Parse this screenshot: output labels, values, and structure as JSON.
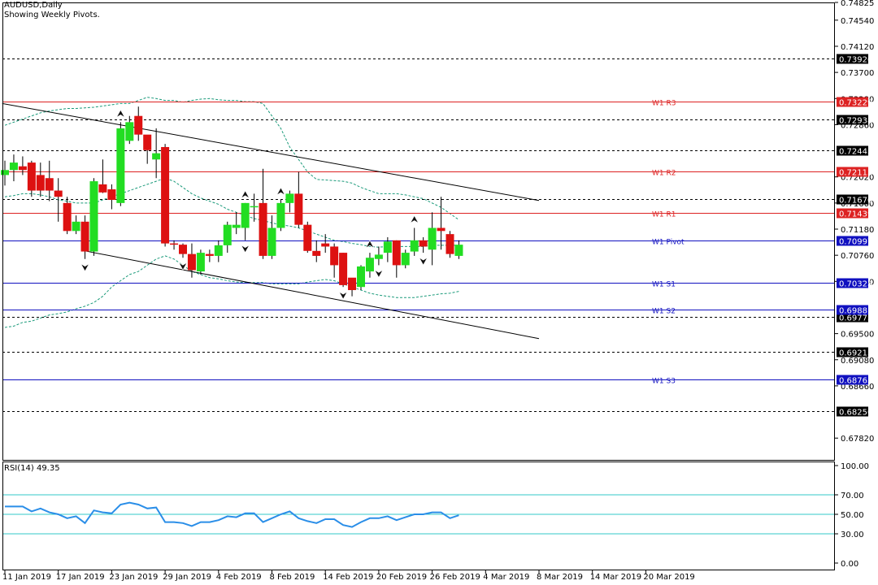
{
  "header": {
    "symbol": "AUDUSD,Daily",
    "subtitle": "Showing Weekly Pivots."
  },
  "rsi_label": "RSI(14) 49.35",
  "colors": {
    "bull": "#22dd22",
    "bear": "#dd1111",
    "pivot_red": "#dd2222",
    "pivot_blue": "#1010c0",
    "rsi": "#2a8ee8",
    "rsi_level": "#33c8c8",
    "band": "#1a9a7a",
    "trendline": "#000000"
  },
  "chart_data": [
    {
      "type": "candlestick",
      "title": "AUDUSD,Daily",
      "subtitle": "Showing Weekly Pivots.",
      "ylim": [
        0.6747,
        0.74825
      ],
      "y_ticks": [
        "0.74825",
        "0.74540",
        "0.74120",
        "0.73700",
        "0.73280",
        "0.72860",
        "0.72020",
        "0.71600",
        "0.71180",
        "0.70760",
        "0.70340",
        "0.69500",
        "0.69080",
        "0.68660",
        "0.67820"
      ],
      "x_labels": [
        "11 Jan 2019",
        "17 Jan 2019",
        "23 Jan 2019",
        "29 Jan 2019",
        "4 Feb 2019",
        "8 Feb 2019",
        "14 Feb 2019",
        "20 Feb 2019",
        "26 Feb 2019",
        "4 Mar 2019",
        "8 Mar 2019",
        "14 Mar 2019",
        "20 Mar 2019"
      ],
      "candles": [
        [
          0.7205,
          0.7228,
          0.7188,
          0.7213
        ],
        [
          0.7213,
          0.7238,
          0.7195,
          0.7225
        ],
        [
          0.7219,
          0.7235,
          0.7205,
          0.7213
        ],
        [
          0.7225,
          0.7228,
          0.717,
          0.718
        ],
        [
          0.7205,
          0.7225,
          0.717,
          0.718
        ],
        [
          0.72,
          0.7228,
          0.7163,
          0.718
        ],
        [
          0.718,
          0.72,
          0.713,
          0.717
        ],
        [
          0.716,
          0.717,
          0.711,
          0.7115
        ],
        [
          0.7115,
          0.714,
          0.711,
          0.713
        ],
        [
          0.713,
          0.714,
          0.707,
          0.7082
        ],
        [
          0.7082,
          0.72,
          0.7075,
          0.7195
        ],
        [
          0.719,
          0.723,
          0.7176,
          0.7177
        ],
        [
          0.7182,
          0.719,
          0.715,
          0.7165
        ],
        [
          0.716,
          0.729,
          0.7155,
          0.728
        ],
        [
          0.726,
          0.73,
          0.7255,
          0.729
        ],
        [
          0.73,
          0.7315,
          0.726,
          0.727
        ],
        [
          0.727,
          0.7268,
          0.7223,
          0.7245
        ],
        [
          0.723,
          0.728,
          0.72,
          0.724
        ],
        [
          0.725,
          0.7255,
          0.709,
          0.7095
        ],
        [
          0.7095,
          0.71,
          0.7085,
          0.7093
        ],
        [
          0.7093,
          0.7095,
          0.7072,
          0.7078
        ],
        [
          0.7078,
          0.7095,
          0.704,
          0.7052
        ],
        [
          0.705,
          0.7085,
          0.7045,
          0.708
        ],
        [
          0.7078,
          0.7085,
          0.7065,
          0.7075
        ],
        [
          0.7075,
          0.71,
          0.7065,
          0.7092
        ],
        [
          0.7092,
          0.713,
          0.708,
          0.7125
        ],
        [
          0.712,
          0.7145,
          0.711,
          0.7125
        ],
        [
          0.712,
          0.716,
          0.71,
          0.716
        ],
        [
          0.7155,
          0.7175,
          0.713,
          0.7155
        ],
        [
          0.716,
          0.7215,
          0.707,
          0.7075
        ],
        [
          0.7075,
          0.714,
          0.707,
          0.712
        ],
        [
          0.712,
          0.7165,
          0.7115,
          0.716
        ],
        [
          0.716,
          0.718,
          0.7145,
          0.7175
        ],
        [
          0.7175,
          0.721,
          0.712,
          0.7125
        ],
        [
          0.7125,
          0.713,
          0.708,
          0.7083
        ],
        [
          0.7083,
          0.71,
          0.7065,
          0.7075
        ],
        [
          0.7095,
          0.711,
          0.708,
          0.709
        ],
        [
          0.709,
          0.7095,
          0.704,
          0.706
        ],
        [
          0.708,
          0.708,
          0.7025,
          0.7028
        ],
        [
          0.704,
          0.7035,
          0.701,
          0.702
        ],
        [
          0.7025,
          0.706,
          0.702,
          0.7058
        ],
        [
          0.705,
          0.708,
          0.704,
          0.7072
        ],
        [
          0.707,
          0.709,
          0.706,
          0.7077
        ],
        [
          0.708,
          0.7105,
          0.7065,
          0.7098
        ],
        [
          0.71,
          0.71,
          0.704,
          0.706
        ],
        [
          0.706,
          0.7085,
          0.7055,
          0.708
        ],
        [
          0.7082,
          0.712,
          0.7075,
          0.71
        ],
        [
          0.71,
          0.7105,
          0.708,
          0.709
        ],
        [
          0.7085,
          0.7145,
          0.706,
          0.712
        ],
        [
          0.712,
          0.717,
          0.7085,
          0.7115
        ],
        [
          0.711,
          0.7115,
          0.7072,
          0.7078
        ],
        [
          0.7075,
          0.71,
          0.707,
          0.7093
        ]
      ],
      "band_upper": [
        0.7285,
        0.729,
        0.7295,
        0.73,
        0.7305,
        0.7308,
        0.731,
        0.7312,
        0.7312,
        0.7313,
        0.7314,
        0.7316,
        0.7318,
        0.732,
        0.732,
        0.7325,
        0.733,
        0.7328,
        0.7325,
        0.7325,
        0.7322,
        0.7325,
        0.7327,
        0.7328,
        0.7326,
        0.7325,
        0.7325,
        0.7323,
        0.7323,
        0.732,
        0.73,
        0.728,
        0.725,
        0.723,
        0.721,
        0.7198,
        0.7197,
        0.7196,
        0.7195,
        0.7192,
        0.7185,
        0.718,
        0.7175,
        0.7175,
        0.7175,
        0.7173,
        0.717,
        0.7167,
        0.716,
        0.7153,
        0.7143,
        0.7133
      ],
      "band_middle": [
        0.717,
        0.7172,
        0.7175,
        0.7175,
        0.7173,
        0.717,
        0.7165,
        0.7163,
        0.716,
        0.716,
        0.716,
        0.7165,
        0.717,
        0.7175,
        0.718,
        0.7185,
        0.719,
        0.7195,
        0.72,
        0.7195,
        0.7185,
        0.7175,
        0.7168,
        0.7163,
        0.7158,
        0.715,
        0.7145,
        0.714,
        0.7135,
        0.7132,
        0.7128,
        0.7125,
        0.7123,
        0.712,
        0.7115,
        0.711,
        0.7105,
        0.71,
        0.7098,
        0.7095,
        0.7093,
        0.709,
        0.7089,
        0.709,
        0.709,
        0.709,
        0.709,
        0.709,
        0.7092,
        0.7092,
        0.7092,
        0.7092
      ],
      "band_lower": [
        0.696,
        0.6962,
        0.6968,
        0.697,
        0.6975,
        0.698,
        0.6982,
        0.6985,
        0.699,
        0.6994,
        0.7,
        0.701,
        0.7025,
        0.7035,
        0.7045,
        0.705,
        0.706,
        0.707,
        0.7075,
        0.707,
        0.706,
        0.705,
        0.7045,
        0.704,
        0.7038,
        0.7035,
        0.7033,
        0.7032,
        0.7032,
        0.7032,
        0.703,
        0.703,
        0.703,
        0.703,
        0.7033,
        0.7035,
        0.7037,
        0.7035,
        0.703,
        0.7025,
        0.702,
        0.7015,
        0.7012,
        0.701,
        0.7008,
        0.7008,
        0.7008,
        0.701,
        0.7012,
        0.7014,
        0.7015,
        0.7018
      ],
      "fractals_up": [
        13,
        27,
        31,
        41,
        46
      ],
      "fractals_down": [
        9,
        20,
        27,
        38,
        42,
        47
      ],
      "pivot_levels": [
        {
          "label": "W1 R3",
          "value": 0.73229,
          "price": "0.73229",
          "color": "red"
        },
        {
          "label": "W1 R2",
          "value": 0.72113,
          "price": "0.72113",
          "color": "red"
        },
        {
          "label": "W1 R1",
          "value": 0.71439,
          "price": "0.71439",
          "color": "red"
        },
        {
          "label": "W1 Pivot",
          "value": 0.70997,
          "price": "0.70997",
          "color": "blue"
        },
        {
          "label": "W1 S1",
          "value": 0.70323,
          "price": "0.70323",
          "color": "blue"
        },
        {
          "label": "W1 S2",
          "value": 0.69881,
          "price": "0.69881",
          "color": "blue"
        },
        {
          "label": "W1 S3",
          "value": 0.68765,
          "price": "0.68765",
          "color": "blue"
        }
      ],
      "dashed_levels": [
        {
          "value": 0.7392,
          "price": "0.73920"
        },
        {
          "value": 0.72938,
          "price": "0.72938"
        },
        {
          "value": 0.72443,
          "price": "0.72443"
        },
        {
          "value": 0.7167,
          "price": "0.71670"
        },
        {
          "value": 0.69775,
          "price": "0.69775"
        },
        {
          "value": 0.69213,
          "price": "0.69213"
        },
        {
          "value": 0.6825,
          "price": "0.68250"
        }
      ],
      "channel_upper": [
        [
          -0.3,
          0.732
        ],
        [
          60.0,
          0.7164
        ]
      ],
      "channel_lower": [
        [
          9.0,
          0.7083
        ],
        [
          60.0,
          0.6942
        ]
      ]
    },
    {
      "type": "line",
      "title": "RSI(14) 49.35",
      "ylim": [
        0,
        100
      ],
      "y_ticks": [
        "100.00",
        "70.00",
        "50.00",
        "30.00",
        "0.00"
      ],
      "levels": [
        70,
        50,
        30
      ],
      "values": [
        58,
        58,
        58,
        53,
        56,
        52,
        50,
        46,
        48,
        41,
        54,
        52,
        51,
        60,
        62,
        60,
        56,
        57,
        42,
        42,
        41,
        38,
        42,
        42,
        44,
        48,
        47,
        51,
        51,
        42,
        46,
        50,
        53,
        46,
        43,
        41,
        45,
        45,
        39,
        37,
        42,
        46,
        46,
        48,
        44,
        47,
        50,
        50,
        52,
        52,
        46,
        49
      ]
    }
  ]
}
